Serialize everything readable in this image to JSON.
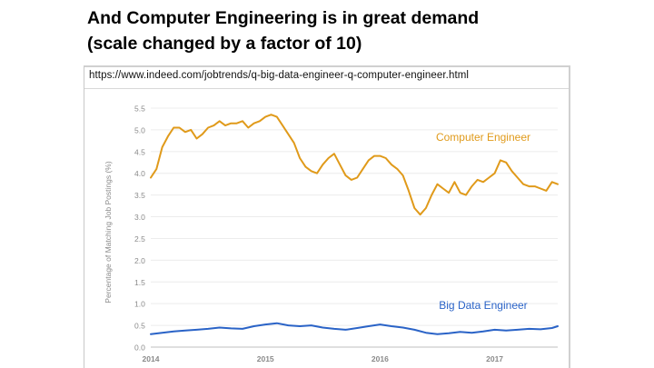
{
  "slide": {
    "title_line1": "And Computer Engineering is in great demand",
    "title_line2": "(scale changed by a factor of 10)",
    "source_url": "https://www.indeed.com/jobtrends/q-big-data-engineer-q-computer-engineer.html"
  },
  "chart_data": {
    "type": "line",
    "title": "",
    "xlabel": "",
    "ylabel": "Percentage of Matching Job Postings (%)",
    "ylim": [
      0,
      5.5
    ],
    "xlim": [
      2014.0,
      2017.55
    ],
    "yticks": [
      "0.0",
      "0.5",
      "1.0",
      "1.5",
      "2.0",
      "2.5",
      "3.0",
      "3.5",
      "4.0",
      "4.5",
      "5.0",
      "5.5"
    ],
    "xticks": [
      {
        "value": 2014,
        "label": "2014"
      },
      {
        "value": 2015,
        "label": "2015"
      },
      {
        "value": 2016,
        "label": "2016"
      },
      {
        "value": 2017,
        "label": "2017"
      }
    ],
    "grid": true,
    "series": [
      {
        "name": "Computer Engineer",
        "color": "#e09a1a",
        "label_pos": [
          2016.9,
          4.75
        ],
        "x": [
          2014.0,
          2014.05,
          2014.1,
          2014.15,
          2014.2,
          2014.25,
          2014.3,
          2014.35,
          2014.4,
          2014.45,
          2014.5,
          2014.55,
          2014.6,
          2014.65,
          2014.7,
          2014.75,
          2014.8,
          2014.85,
          2014.9,
          2014.95,
          2015.0,
          2015.05,
          2015.1,
          2015.15,
          2015.2,
          2015.25,
          2015.3,
          2015.35,
          2015.4,
          2015.45,
          2015.5,
          2015.55,
          2015.6,
          2015.65,
          2015.7,
          2015.75,
          2015.8,
          2015.85,
          2015.9,
          2015.95,
          2016.0,
          2016.05,
          2016.1,
          2016.15,
          2016.2,
          2016.25,
          2016.3,
          2016.35,
          2016.4,
          2016.45,
          2016.5,
          2016.55,
          2016.6,
          2016.65,
          2016.7,
          2016.75,
          2016.8,
          2016.85,
          2016.9,
          2016.95,
          2017.0,
          2017.05,
          2017.1,
          2017.15,
          2017.2,
          2017.25,
          2017.3,
          2017.35,
          2017.4,
          2017.45,
          2017.5,
          2017.55
        ],
        "values": [
          3.9,
          4.1,
          4.6,
          4.85,
          5.05,
          5.05,
          4.95,
          5.0,
          4.8,
          4.9,
          5.05,
          5.1,
          5.2,
          5.1,
          5.15,
          5.15,
          5.2,
          5.05,
          5.15,
          5.2,
          5.3,
          5.35,
          5.3,
          5.1,
          4.9,
          4.7,
          4.35,
          4.15,
          4.05,
          4.0,
          4.2,
          4.35,
          4.45,
          4.2,
          3.95,
          3.85,
          3.9,
          4.1,
          4.3,
          4.4,
          4.4,
          4.35,
          4.2,
          4.1,
          3.95,
          3.6,
          3.2,
          3.05,
          3.2,
          3.5,
          3.75,
          3.65,
          3.55,
          3.8,
          3.55,
          3.5,
          3.7,
          3.85,
          3.8,
          3.9,
          4.0,
          4.3,
          4.25,
          4.05,
          3.9,
          3.75,
          3.7,
          3.7,
          3.65,
          3.6,
          3.8,
          3.75
        ]
      },
      {
        "name": "Big Data Engineer",
        "color": "#2a63c7",
        "label_pos": [
          2016.9,
          0.88
        ],
        "x": [
          2014.0,
          2014.1,
          2014.2,
          2014.3,
          2014.4,
          2014.5,
          2014.6,
          2014.7,
          2014.8,
          2014.9,
          2015.0,
          2015.1,
          2015.2,
          2015.3,
          2015.4,
          2015.5,
          2015.6,
          2015.7,
          2015.8,
          2015.9,
          2016.0,
          2016.1,
          2016.2,
          2016.3,
          2016.4,
          2016.5,
          2016.6,
          2016.7,
          2016.8,
          2016.9,
          2017.0,
          2017.1,
          2017.2,
          2017.3,
          2017.4,
          2017.5,
          2017.55
        ],
        "values": [
          0.3,
          0.33,
          0.36,
          0.38,
          0.4,
          0.42,
          0.45,
          0.43,
          0.42,
          0.48,
          0.52,
          0.55,
          0.5,
          0.48,
          0.5,
          0.45,
          0.42,
          0.4,
          0.44,
          0.48,
          0.52,
          0.48,
          0.45,
          0.4,
          0.33,
          0.3,
          0.32,
          0.35,
          0.33,
          0.36,
          0.4,
          0.38,
          0.4,
          0.42,
          0.41,
          0.44,
          0.48
        ]
      }
    ]
  }
}
